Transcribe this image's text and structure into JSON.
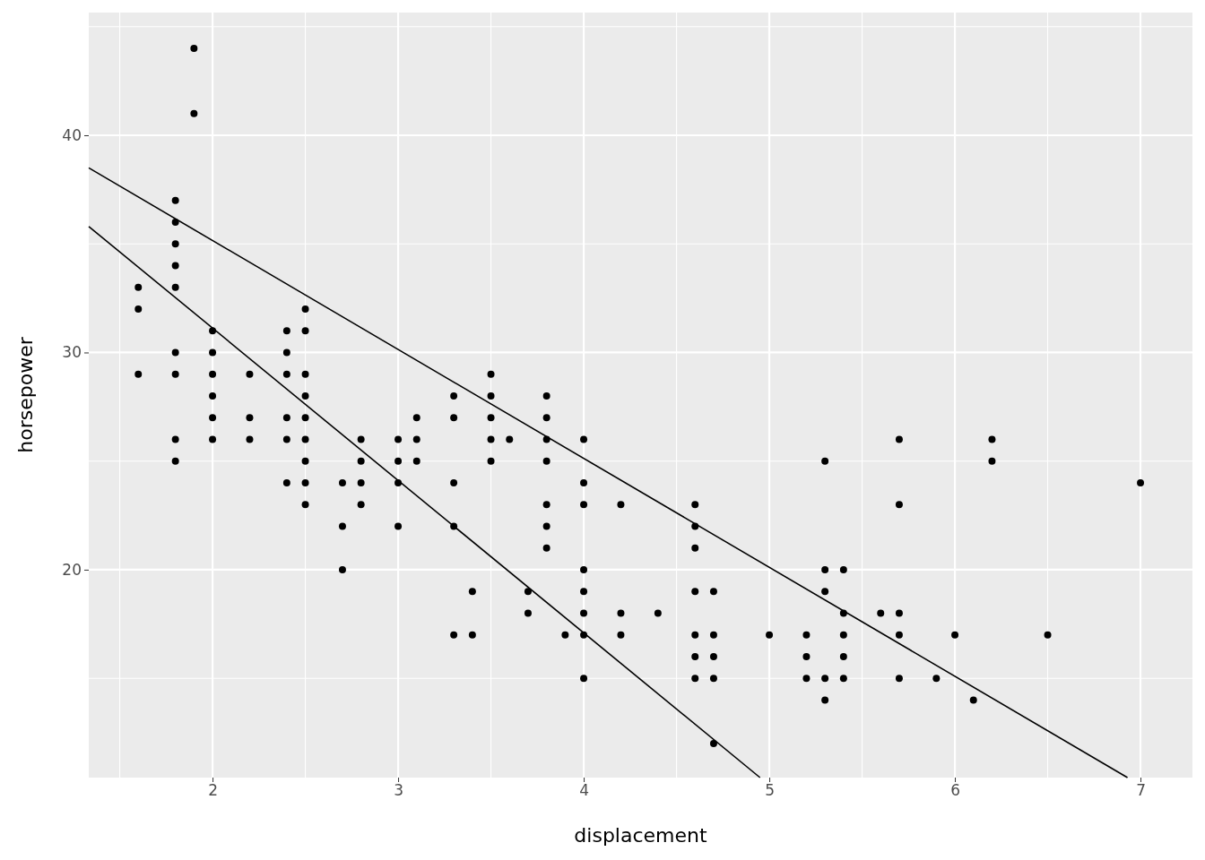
{
  "chart_data": {
    "type": "scatter",
    "xlabel": "displacement",
    "ylabel": "horsepower",
    "xlim": [
      1.333,
      7.28
    ],
    "ylim": [
      10.43,
      45.65
    ],
    "xticks": [
      {
        "value": 1.5,
        "label": null
      },
      2,
      {
        "value": 2.5,
        "label": null
      },
      3,
      {
        "value": 3.5,
        "label": null
      },
      4,
      {
        "value": 4.5,
        "label": null
      },
      5,
      {
        "value": 5.5,
        "label": null
      },
      6,
      {
        "value": 6.5,
        "label": null
      },
      7
    ],
    "yticks": [
      {
        "value": 15,
        "label": null
      },
      20,
      {
        "value": 25,
        "label": null
      },
      30,
      {
        "value": 35,
        "label": null
      },
      40,
      {
        "value": 45,
        "label": null
      }
    ],
    "grid": true,
    "series": [
      {
        "marker": "circle",
        "color": "#000000",
        "x": [
          1.6,
          1.6,
          1.6,
          1.8,
          1.8,
          1.8,
          1.8,
          1.8,
          1.8,
          1.8,
          1.8,
          1.8,
          1.9,
          1.9,
          2,
          2,
          2,
          2,
          2,
          2,
          2.2,
          2.2,
          2.2,
          2.4,
          2.4,
          2.4,
          2.4,
          2.4,
          2.4,
          2.5,
          2.5,
          2.5,
          2.5,
          2.5,
          2.5,
          2.5,
          2.5,
          2.5,
          2.7,
          2.7,
          2.7,
          2.8,
          2.8,
          2.8,
          2.8,
          3,
          3,
          3,
          3,
          3.1,
          3.1,
          3.1,
          3.3,
          3.3,
          3.3,
          3.3,
          3.3,
          3.4,
          3.4,
          3.5,
          3.5,
          3.5,
          3.5,
          3.5,
          3.6,
          3.7,
          3.7,
          3.8,
          3.8,
          3.8,
          3.8,
          3.8,
          3.8,
          3.8,
          3.9,
          4,
          4,
          4,
          4,
          4,
          4,
          4,
          4,
          4.2,
          4.2,
          4.2,
          4.4,
          4.6,
          4.6,
          4.6,
          4.6,
          4.6,
          4.6,
          4.6,
          4.7,
          4.7,
          4.7,
          4.7,
          4.7,
          5,
          5.2,
          5.2,
          5.2,
          5.3,
          5.3,
          5.3,
          5.3,
          5.3,
          5.4,
          5.4,
          5.4,
          5.4,
          5.4,
          5.6,
          5.7,
          5.7,
          5.7,
          5.7,
          5.7,
          5.9,
          6,
          6.1,
          6.2,
          6.2,
          6.5,
          7
        ],
        "values": [
          33,
          32,
          29,
          37,
          36,
          35,
          34,
          33,
          30,
          29,
          26,
          25,
          44,
          41,
          31,
          30,
          29,
          28,
          27,
          26,
          29,
          27,
          26,
          31,
          30,
          29,
          27,
          26,
          24,
          32,
          31,
          29,
          28,
          27,
          26,
          25,
          24,
          23,
          24,
          22,
          20,
          26,
          25,
          24,
          23,
          26,
          25,
          24,
          22,
          27,
          26,
          25,
          28,
          27,
          24,
          22,
          17,
          19,
          17,
          29,
          28,
          27,
          26,
          25,
          26,
          19,
          18,
          28,
          27,
          26,
          25,
          23,
          22,
          21,
          17,
          26,
          24,
          23,
          20,
          19,
          18,
          17,
          15,
          23,
          18,
          17,
          18,
          23,
          22,
          21,
          19,
          17,
          16,
          15,
          19,
          17,
          16,
          15,
          12,
          17,
          17,
          16,
          15,
          25,
          20,
          19,
          15,
          14,
          20,
          18,
          17,
          16,
          15,
          18,
          26,
          23,
          18,
          17,
          15,
          15,
          17,
          14,
          26,
          25,
          17,
          24
        ]
      },
      {
        "type": "line",
        "marker": "none",
        "color": "#000000",
        "x": [
          1.333,
          6.93
        ],
        "values": [
          38.5,
          10.43
        ]
      },
      {
        "type": "line",
        "marker": "none",
        "color": "#000000",
        "x": [
          1.333,
          4.95
        ],
        "values": [
          35.8,
          10.43
        ]
      }
    ]
  }
}
